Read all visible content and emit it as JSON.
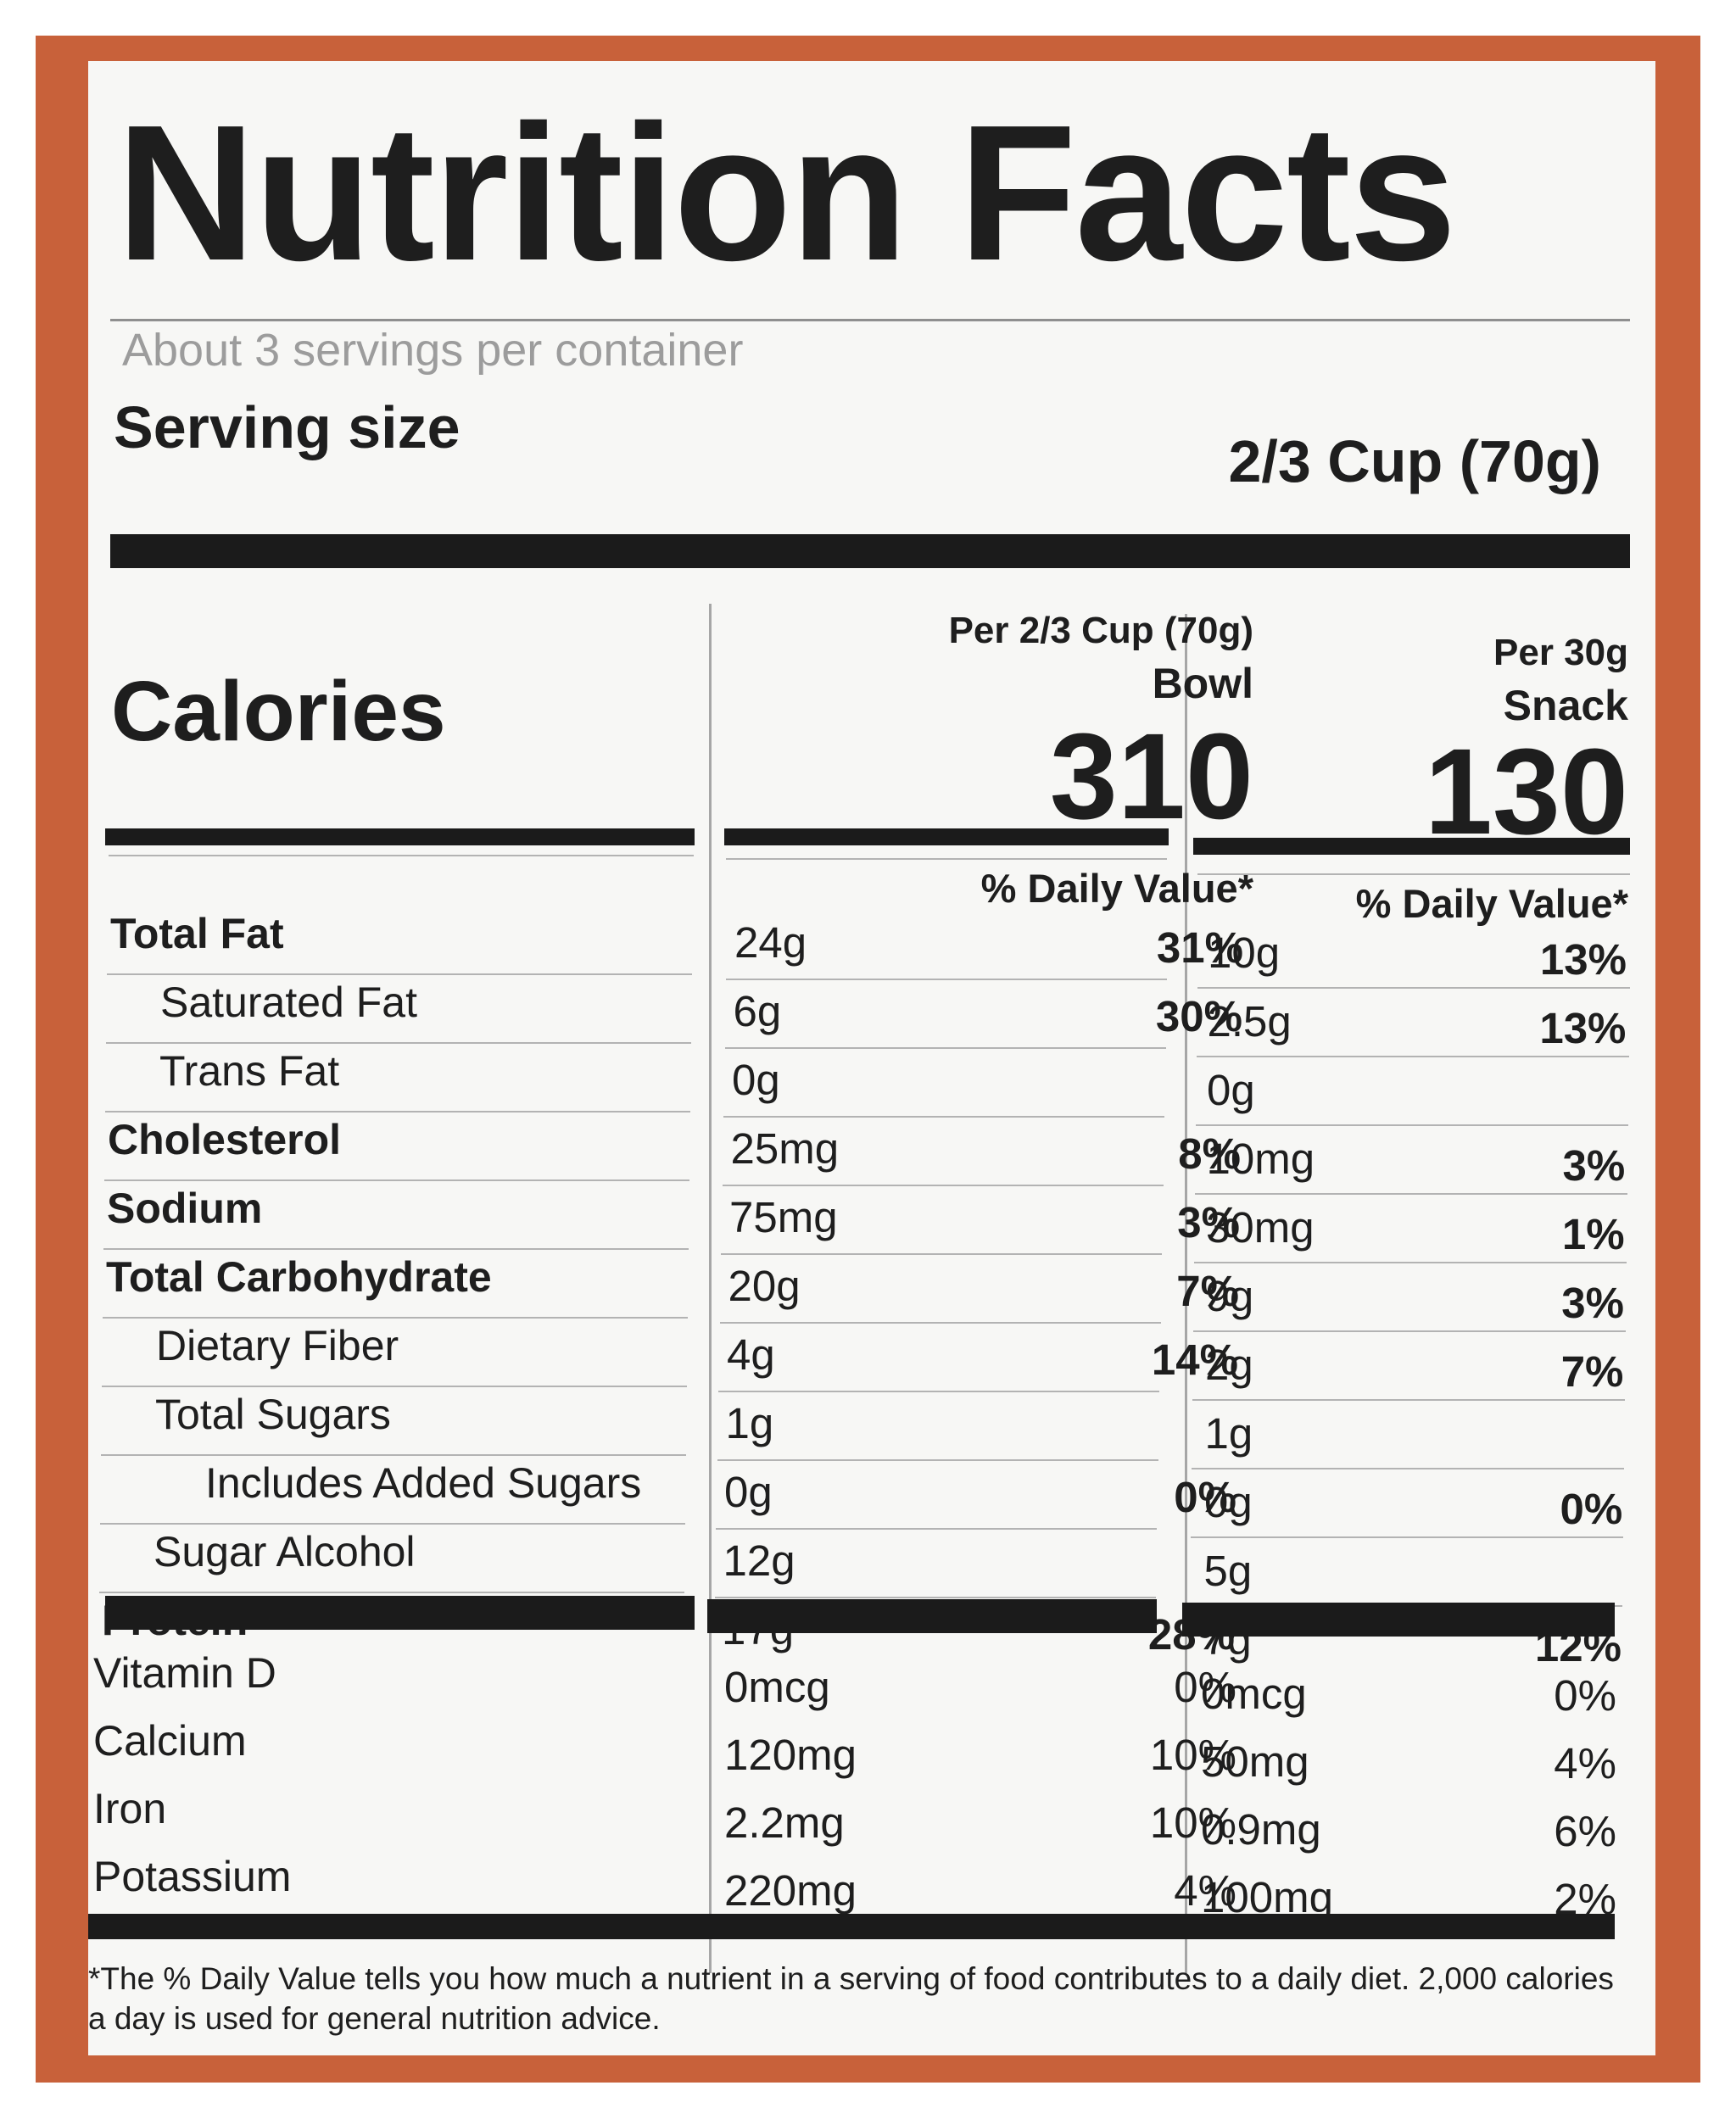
{
  "colors": {
    "package_orange": "#c8613a",
    "panel": "#f7f7f5",
    "ink": "#1b1b1b",
    "servings_gray": "#9c9c9c"
  },
  "title": "Nutrition Facts",
  "servings_per_container": "About 3 servings per container",
  "serving_size": {
    "label": "Serving size",
    "value": "2/3 Cup (70g)"
  },
  "calories_label": "Calories",
  "columns": [
    {
      "per": "Per 2/3 Cup (70g)",
      "name": "Bowl",
      "calories": "310",
      "dv_header": "% Daily Value*"
    },
    {
      "per": "Per 30g",
      "name": "Snack",
      "calories": "130",
      "dv_header": "% Daily Value*"
    }
  ],
  "nutrients": [
    {
      "label": "Total Fat",
      "bold": true,
      "indent": 0,
      "bowl_amt": "24g",
      "bowl_dv": "31%",
      "snack_amt": "10g",
      "snack_dv": "13%"
    },
    {
      "label": "Saturated Fat",
      "bold": false,
      "indent": 1,
      "bowl_amt": "6g",
      "bowl_dv": "30%",
      "snack_amt": "2.5g",
      "snack_dv": "13%"
    },
    {
      "label": "Trans Fat",
      "bold": false,
      "indent": 1,
      "bowl_amt": "0g",
      "bowl_dv": "",
      "snack_amt": "0g",
      "snack_dv": ""
    },
    {
      "label": "Cholesterol",
      "bold": true,
      "indent": 0,
      "bowl_amt": "25mg",
      "bowl_dv": "8%",
      "snack_amt": "10mg",
      "snack_dv": "3%"
    },
    {
      "label": "Sodium",
      "bold": true,
      "indent": 0,
      "bowl_amt": "75mg",
      "bowl_dv": "3%",
      "snack_amt": "30mg",
      "snack_dv": "1%"
    },
    {
      "label": "Total Carbohydrate",
      "bold": true,
      "indent": 0,
      "bowl_amt": "20g",
      "bowl_dv": "7%",
      "snack_amt": "9g",
      "snack_dv": "3%"
    },
    {
      "label": "Dietary Fiber",
      "bold": false,
      "indent": 1,
      "bowl_amt": "4g",
      "bowl_dv": "14%",
      "snack_amt": "2g",
      "snack_dv": "7%"
    },
    {
      "label": "Total Sugars",
      "bold": false,
      "indent": 1,
      "bowl_amt": "1g",
      "bowl_dv": "",
      "snack_amt": "1g",
      "snack_dv": ""
    },
    {
      "label": "Includes Added Sugars",
      "bold": false,
      "indent": 2,
      "bowl_amt": "0g",
      "bowl_dv": "0%",
      "snack_amt": "0g",
      "snack_dv": "0%"
    },
    {
      "label": "Sugar Alcohol",
      "bold": false,
      "indent": 1,
      "bowl_amt": "12g",
      "bowl_dv": "",
      "snack_amt": "5g",
      "snack_dv": ""
    },
    {
      "label": "Protein",
      "bold": true,
      "indent": 0,
      "bowl_amt": "17g",
      "bowl_dv": "28%",
      "snack_amt": "7g",
      "snack_dv": "12%"
    }
  ],
  "vitamins": [
    {
      "label": "Vitamin D",
      "bowl_amt": "0mcg",
      "bowl_dv": "0%",
      "snack_amt": "0mcg",
      "snack_dv": "0%"
    },
    {
      "label": "Calcium",
      "bowl_amt": "120mg",
      "bowl_dv": "10%",
      "snack_amt": "50mg",
      "snack_dv": "4%"
    },
    {
      "label": "Iron",
      "bowl_amt": "2.2mg",
      "bowl_dv": "10%",
      "snack_amt": "0.9mg",
      "snack_dv": "6%"
    },
    {
      "label": "Potassium",
      "bowl_amt": "220mg",
      "bowl_dv": "4%",
      "snack_amt": "100mg",
      "snack_dv": "2%"
    }
  ],
  "footnote": "*The % Daily Value tells you how much a nutrient in a serving of food contributes to a daily diet. 2,000 calories a day is used for general nutrition advice."
}
